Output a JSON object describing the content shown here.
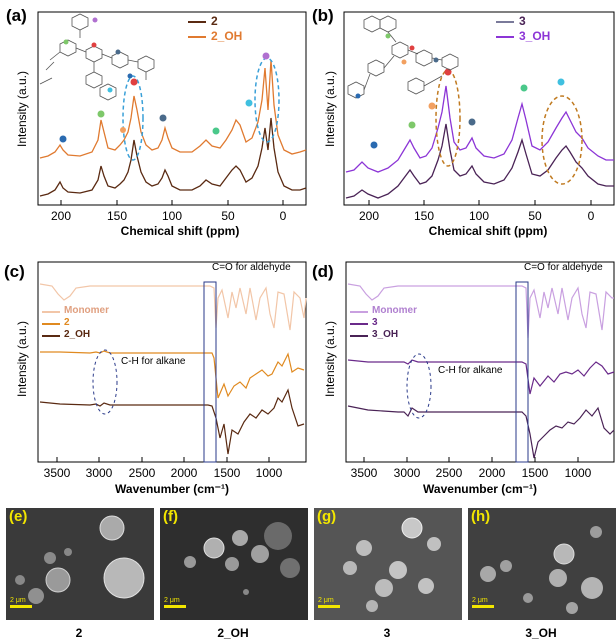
{
  "panel_labels": {
    "a": "(a)",
    "b": "(b)",
    "c": "(c)",
    "d": "(d)",
    "e": "(e)",
    "f": "(f)",
    "g": "(g)",
    "h": "(h)"
  },
  "chart_data": [
    {
      "type": "line",
      "panel": "(a)",
      "xlabel": "Chemical shift (ppm)",
      "ylabel": "Intensity (a.u.)",
      "xlim": [
        220,
        -20
      ],
      "xticks": [
        200,
        150,
        100,
        50,
        0
      ],
      "legend": [
        "2",
        "2_OH"
      ],
      "colors": {
        "2": "#5a2a12",
        "2_OH": "#e07a30"
      },
      "peaks_ppm": [
        198,
        162,
        146,
        135,
        110,
        62,
        28,
        16
      ]
    },
    {
      "type": "line",
      "panel": "(b)",
      "xlabel": "Chemical shift (ppm)",
      "ylabel": "Intensity (a.u.)",
      "xlim": [
        220,
        -20
      ],
      "xticks": [
        200,
        150,
        100,
        50,
        0
      ],
      "legend": [
        "3",
        "3_OH"
      ],
      "colors": {
        "3": "#4a2356",
        "3_OH": "#8c35d6"
      },
      "peaks_ppm": [
        190,
        162,
        145,
        130,
        110,
        62,
        28
      ]
    },
    {
      "type": "line",
      "panel": "(c)",
      "xlabel": "Wavenumber (cm⁻¹)",
      "ylabel": "Intensity (a.u.)",
      "xlim": [
        3700,
        750
      ],
      "xticks": [
        3500,
        3000,
        2500,
        2000,
        1500,
        1000
      ],
      "legend": [
        "Monomer",
        "2",
        "2_OH"
      ],
      "colors": {
        "Monomer": "#f2c6a8",
        "2": "#e08a20",
        "2_OH": "#5a2a12"
      },
      "annotations": [
        "C=O for aldehyde",
        "C-H for alkane"
      ]
    },
    {
      "type": "line",
      "panel": "(d)",
      "xlabel": "Wavenumber (cm⁻¹)",
      "ylabel": "Intensity (a.u.)",
      "xlim": [
        3700,
        750
      ],
      "xticks": [
        3500,
        3000,
        2500,
        2000,
        1500,
        1000
      ],
      "legend": [
        "Monomer",
        "3",
        "3_OH"
      ],
      "colors": {
        "Monomer": "#c9a0e0",
        "3": "#6a2a8a",
        "3_OH": "#4a2356"
      },
      "annotations": [
        "C=O for aldehyde",
        "C-H for alkane"
      ]
    }
  ],
  "sem": [
    {
      "tag": "(e)",
      "scale": "2 μm",
      "caption": "2"
    },
    {
      "tag": "(f)",
      "scale": "2 μm",
      "caption": "2_OH"
    },
    {
      "tag": "(g)",
      "scale": "2 μm",
      "caption": "3"
    },
    {
      "tag": "(h)",
      "scale": "2 μm",
      "caption": "3_OH"
    }
  ]
}
